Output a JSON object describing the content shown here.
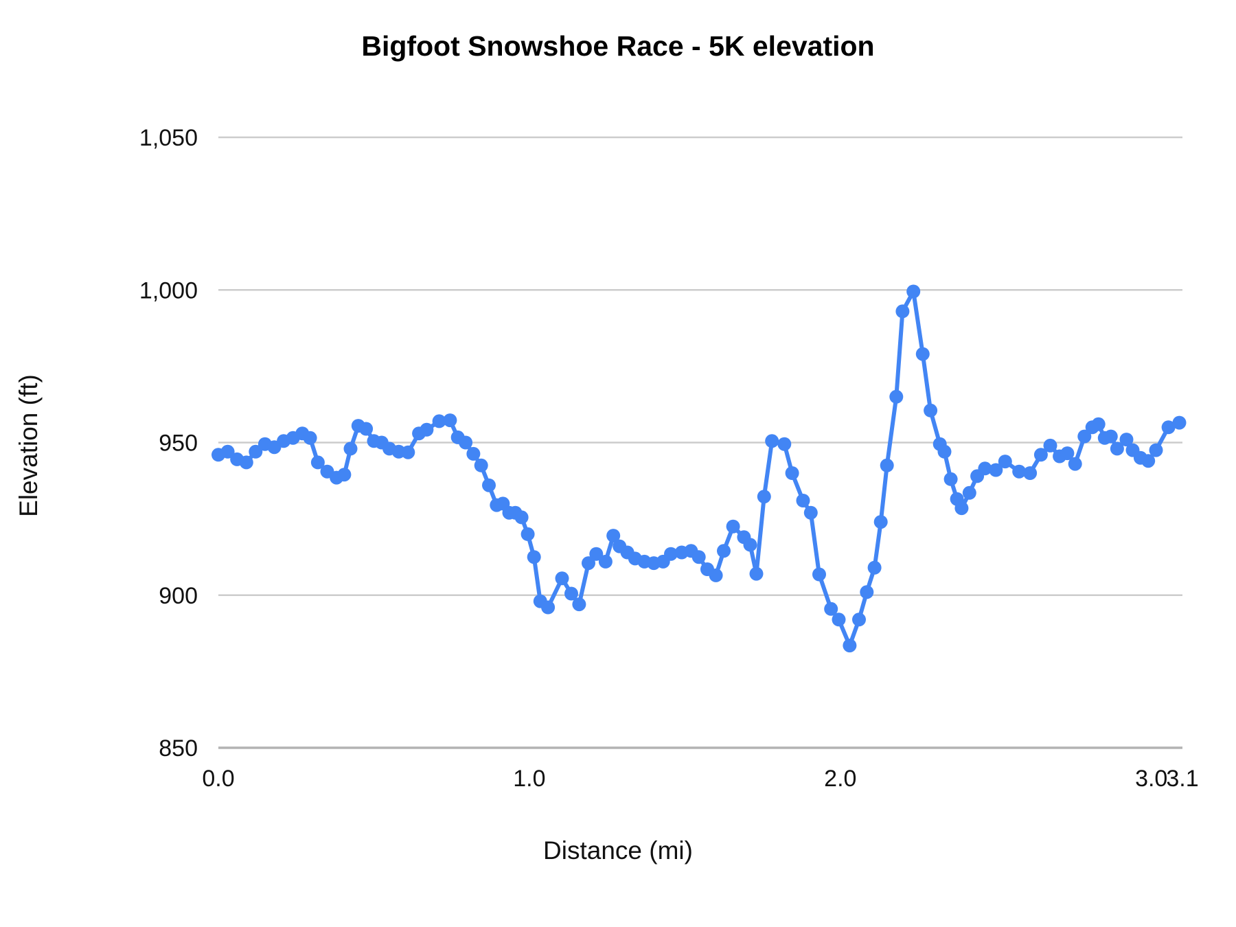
{
  "chart_data": {
    "type": "line",
    "title": "Bigfoot Snowshoe Race - 5K elevation",
    "xlabel": "Distance (mi)",
    "ylabel": "Elevation (ft)",
    "xlim": [
      0,
      3.1
    ],
    "ylim": [
      850,
      1050
    ],
    "grid": true,
    "legend_position": "none",
    "line_color": "#4285F4",
    "gridline_color": "#cccccc",
    "baseline_color": "#b3b3b3",
    "x_ticks": [
      {
        "value": 0.0,
        "label": "0.0"
      },
      {
        "value": 1.0,
        "label": "1.0"
      },
      {
        "value": 2.0,
        "label": "2.0"
      },
      {
        "value": 3.0,
        "label": "3.0"
      },
      {
        "value": 3.1,
        "label": "3.1"
      }
    ],
    "y_ticks": [
      {
        "value": 850,
        "label": "850"
      },
      {
        "value": 900,
        "label": "900"
      },
      {
        "value": 950,
        "label": "950"
      },
      {
        "value": 1000,
        "label": "1,000"
      },
      {
        "value": 1050,
        "label": "1,050"
      }
    ],
    "series": [
      {
        "name": "Elevation",
        "color": "#4285F4",
        "points": [
          [
            0.0,
            946
          ],
          [
            0.03,
            947
          ],
          [
            0.06,
            944.5
          ],
          [
            0.09,
            943.5
          ],
          [
            0.12,
            947
          ],
          [
            0.15,
            949.5
          ],
          [
            0.18,
            948.5
          ],
          [
            0.21,
            950.5
          ],
          [
            0.24,
            951.5
          ],
          [
            0.27,
            953
          ],
          [
            0.295,
            951.5
          ],
          [
            0.32,
            943.5
          ],
          [
            0.35,
            940.5
          ],
          [
            0.38,
            938.5
          ],
          [
            0.405,
            939.5
          ],
          [
            0.425,
            948
          ],
          [
            0.45,
            955.5
          ],
          [
            0.475,
            954.5
          ],
          [
            0.5,
            950.5
          ],
          [
            0.525,
            950
          ],
          [
            0.55,
            948
          ],
          [
            0.58,
            947
          ],
          [
            0.61,
            946.8
          ],
          [
            0.645,
            953
          ],
          [
            0.67,
            954.2
          ],
          [
            0.71,
            957
          ],
          [
            0.745,
            957.3
          ],
          [
            0.77,
            951.7
          ],
          [
            0.795,
            950
          ],
          [
            0.82,
            946.3
          ],
          [
            0.845,
            942.5
          ],
          [
            0.87,
            936
          ],
          [
            0.895,
            929.5
          ],
          [
            0.915,
            930
          ],
          [
            0.935,
            927
          ],
          [
            0.955,
            927
          ],
          [
            0.975,
            925.5
          ],
          [
            0.995,
            920
          ],
          [
            1.015,
            912.5
          ],
          [
            1.035,
            898
          ],
          [
            1.06,
            896
          ],
          [
            1.105,
            905.5
          ],
          [
            1.135,
            900.5
          ],
          [
            1.16,
            897
          ],
          [
            1.19,
            910.5
          ],
          [
            1.215,
            913.5
          ],
          [
            1.245,
            911
          ],
          [
            1.27,
            919.5
          ],
          [
            1.29,
            916
          ],
          [
            1.315,
            914
          ],
          [
            1.34,
            912
          ],
          [
            1.37,
            911
          ],
          [
            1.4,
            910.5
          ],
          [
            1.43,
            911
          ],
          [
            1.455,
            913.5
          ],
          [
            1.49,
            914
          ],
          [
            1.52,
            914.5
          ],
          [
            1.545,
            912.5
          ],
          [
            1.572,
            908.5
          ],
          [
            1.6,
            906.5
          ],
          [
            1.625,
            914.5
          ],
          [
            1.655,
            922.5
          ],
          [
            1.69,
            919
          ],
          [
            1.71,
            916.5
          ],
          [
            1.73,
            907
          ],
          [
            1.755,
            932.3
          ],
          [
            1.78,
            950.5
          ],
          [
            1.82,
            949.5
          ],
          [
            1.845,
            940
          ],
          [
            1.88,
            931
          ],
          [
            1.905,
            927
          ],
          [
            1.932,
            906.8
          ],
          [
            1.97,
            895.5
          ],
          [
            1.995,
            892
          ],
          [
            2.03,
            883.5
          ],
          [
            2.06,
            892
          ],
          [
            2.085,
            901
          ],
          [
            2.11,
            909
          ],
          [
            2.13,
            924
          ],
          [
            2.15,
            942.5
          ],
          [
            2.18,
            965
          ],
          [
            2.2,
            993
          ],
          [
            2.235,
            999.5
          ],
          [
            2.265,
            979
          ],
          [
            2.29,
            960.5
          ],
          [
            2.32,
            949.5
          ],
          [
            2.335,
            947
          ],
          [
            2.355,
            938
          ],
          [
            2.375,
            931.5
          ],
          [
            2.39,
            928.5
          ],
          [
            2.415,
            933.5
          ],
          [
            2.44,
            939
          ],
          [
            2.465,
            941.5
          ],
          [
            2.5,
            941
          ],
          [
            2.53,
            943.8
          ],
          [
            2.575,
            940.5
          ],
          [
            2.61,
            940
          ],
          [
            2.645,
            946
          ],
          [
            2.675,
            949
          ],
          [
            2.705,
            945.5
          ],
          [
            2.73,
            946.5
          ],
          [
            2.755,
            943
          ],
          [
            2.785,
            952
          ],
          [
            2.81,
            955
          ],
          [
            2.83,
            956
          ],
          [
            2.85,
            951.5
          ],
          [
            2.87,
            952
          ],
          [
            2.89,
            948
          ],
          [
            2.92,
            951
          ],
          [
            2.94,
            947.5
          ],
          [
            2.965,
            945
          ],
          [
            2.99,
            944
          ],
          [
            3.015,
            947.5
          ],
          [
            3.055,
            955
          ],
          [
            3.09,
            956.5
          ]
        ]
      }
    ]
  }
}
